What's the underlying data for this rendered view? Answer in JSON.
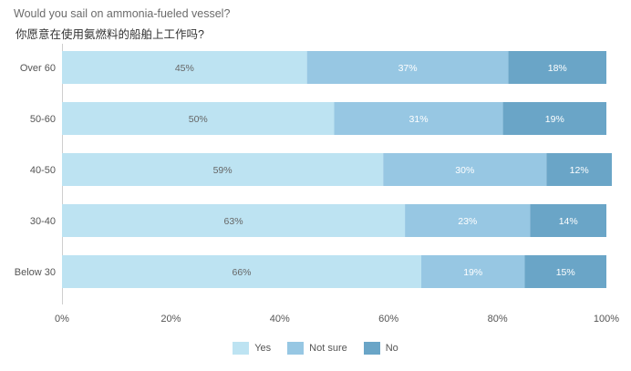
{
  "chart_data": {
    "type": "bar",
    "orientation": "horizontal",
    "stacked": "percent",
    "title": "Would you sail on ammonia-fueled vessel?",
    "subtitle": "你愿意在使用氨燃料的船舶上工作吗?",
    "categories": [
      "Over 60",
      "50-60",
      "40-50",
      "30-40",
      "Below 30"
    ],
    "series": [
      {
        "name": "Yes",
        "color": "#bde3f2",
        "values": [
          45,
          50,
          59,
          63,
          66
        ]
      },
      {
        "name": "Not sure",
        "color": "#97c7e3",
        "values": [
          37,
          31,
          30,
          23,
          19
        ]
      },
      {
        "name": "No",
        "color": "#6aa5c7",
        "values": [
          18,
          19,
          12,
          14,
          15
        ]
      }
    ],
    "data_labels": [
      [
        "45%",
        "50%",
        "59%",
        "63%",
        "66%"
      ],
      [
        "37%",
        "31%",
        "30%",
        "23%",
        "19%"
      ],
      [
        "18%",
        "19%",
        "12%",
        "14%",
        "15%"
      ]
    ],
    "xlim": [
      0,
      100
    ],
    "xticks": [
      "0%",
      "20%",
      "40%",
      "60%",
      "80%",
      "100%"
    ],
    "legend_position": "bottom",
    "grid": false
  }
}
